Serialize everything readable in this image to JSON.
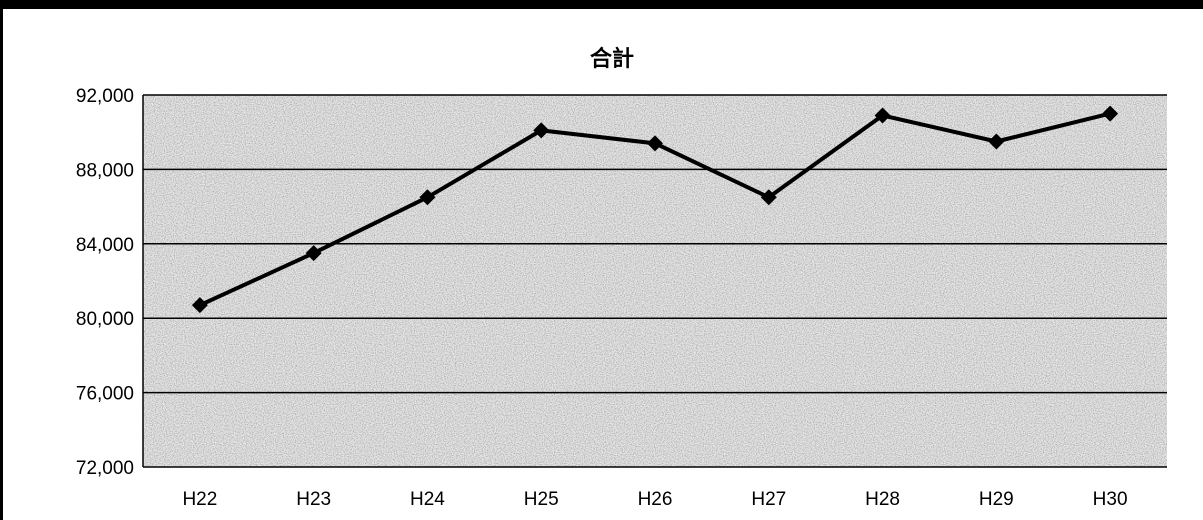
{
  "chart_data": {
    "type": "line",
    "title": "合計",
    "categories": [
      "H22",
      "H23",
      "H24",
      "H25",
      "H26",
      "H27",
      "H28",
      "H29",
      "H30"
    ],
    "series": [
      {
        "values": [
          80700,
          83500,
          86500,
          90100,
          89400,
          86500,
          90900,
          89500,
          91000
        ]
      }
    ],
    "ylim": [
      72000,
      92000
    ],
    "yticks": [
      72000,
      76000,
      80000,
      84000,
      88000,
      92000
    ],
    "ytick_labels": [
      "72,000",
      "76,000",
      "80,000",
      "84,000",
      "88,000",
      "92,000"
    ],
    "grid": true,
    "legend": "none",
    "colors": {
      "line": "#000000",
      "grid": "#000000",
      "plot_background": "#e6e6e6"
    }
  }
}
